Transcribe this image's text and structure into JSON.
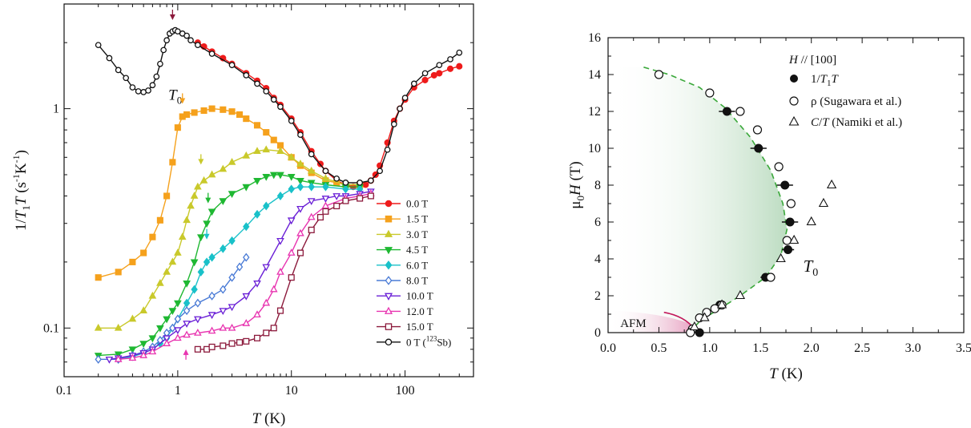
{
  "chart_data": [
    {
      "type": "line",
      "xscale": "log",
      "yscale": "log",
      "xlim": [
        0.1,
        400
      ],
      "ylim": [
        0.06,
        3.0
      ],
      "xlabel": "T (K)",
      "ylabel": "1/T1T (s-1K-1)",
      "x_ticks": [
        {
          "value": 0.1,
          "label": "0.1"
        },
        {
          "value": 1,
          "label": "1"
        },
        {
          "value": 10,
          "label": "10"
        },
        {
          "value": 100,
          "label": "100"
        }
      ],
      "y_ticks": [
        {
          "value": 0.1,
          "label": "0.1"
        },
        {
          "value": 1,
          "label": "1"
        }
      ],
      "annotation": {
        "text": "T0",
        "x": 0.95,
        "y": 1.1
      },
      "legend_position": "bottom-right",
      "series": [
        {
          "name": "0.0 T",
          "color": "#ee1b1b",
          "marker": "circle",
          "fill": true,
          "x": [
            1.5,
            1.7,
            2,
            2.5,
            3,
            4,
            5,
            6,
            7,
            8,
            10,
            12,
            15,
            18,
            20,
            25,
            30,
            35,
            40,
            45,
            50,
            55,
            60,
            70,
            80,
            90,
            100,
            120,
            150,
            180,
            200,
            250,
            300
          ],
          "y": [
            2.0,
            1.92,
            1.82,
            1.7,
            1.6,
            1.45,
            1.34,
            1.24,
            1.12,
            1.04,
            0.9,
            0.78,
            0.64,
            0.56,
            0.52,
            0.47,
            0.45,
            0.44,
            0.44,
            0.45,
            0.47,
            0.5,
            0.55,
            0.7,
            0.88,
            1.0,
            1.1,
            1.25,
            1.35,
            1.42,
            1.45,
            1.52,
            1.56
          ]
        },
        {
          "name": "1.5 T",
          "color": "#f5a11c",
          "marker": "square",
          "fill": true,
          "x": [
            0.2,
            0.3,
            0.4,
            0.5,
            0.6,
            0.7,
            0.8,
            0.9,
            1.0,
            1.1,
            1.2,
            1.4,
            1.7,
            2.0,
            2.5,
            3,
            3.5,
            4,
            5,
            6,
            7,
            8,
            10,
            12,
            15,
            20,
            25,
            30,
            40
          ],
          "y": [
            0.17,
            0.18,
            0.2,
            0.22,
            0.26,
            0.31,
            0.4,
            0.57,
            0.82,
            0.92,
            0.94,
            0.96,
            0.98,
            1.0,
            0.99,
            0.97,
            0.94,
            0.9,
            0.84,
            0.78,
            0.72,
            0.68,
            0.6,
            0.55,
            0.51,
            0.47,
            0.46,
            0.45,
            0.45
          ]
        },
        {
          "name": "3.0 T",
          "color": "#c9c92b",
          "marker": "triangle",
          "fill": true,
          "x": [
            0.2,
            0.3,
            0.4,
            0.5,
            0.6,
            0.7,
            0.8,
            0.9,
            1.0,
            1.1,
            1.2,
            1.3,
            1.4,
            1.5,
            1.7,
            2.0,
            2.5,
            3,
            4,
            5,
            6,
            8,
            10,
            12,
            15,
            20,
            30,
            40
          ],
          "y": [
            0.1,
            0.1,
            0.11,
            0.12,
            0.14,
            0.16,
            0.18,
            0.2,
            0.22,
            0.26,
            0.31,
            0.36,
            0.4,
            0.44,
            0.47,
            0.5,
            0.53,
            0.57,
            0.61,
            0.64,
            0.65,
            0.64,
            0.6,
            0.56,
            0.52,
            0.48,
            0.45,
            0.45
          ]
        },
        {
          "name": "4.5 T",
          "color": "#1fb832",
          "marker": "triangle-down",
          "fill": true,
          "x": [
            0.2,
            0.3,
            0.4,
            0.5,
            0.6,
            0.7,
            0.8,
            0.9,
            1.0,
            1.2,
            1.4,
            1.6,
            1.8,
            2.0,
            2.5,
            3,
            4,
            5,
            6,
            7,
            8,
            10,
            12,
            15,
            20,
            30,
            40
          ],
          "y": [
            0.075,
            0.076,
            0.08,
            0.085,
            0.09,
            0.1,
            0.11,
            0.12,
            0.13,
            0.16,
            0.2,
            0.26,
            0.3,
            0.34,
            0.38,
            0.41,
            0.44,
            0.47,
            0.49,
            0.5,
            0.5,
            0.49,
            0.47,
            0.46,
            0.45,
            0.44,
            0.44
          ]
        },
        {
          "name": "6.0 T",
          "color": "#19c1c9",
          "marker": "diamond",
          "fill": true,
          "x": [
            0.3,
            0.4,
            0.5,
            0.6,
            0.7,
            0.8,
            0.9,
            1.0,
            1.2,
            1.4,
            1.6,
            1.8,
            2.0,
            2.5,
            3,
            4,
            5,
            6,
            8,
            10,
            12,
            15,
            20,
            30,
            40
          ],
          "y": [
            0.072,
            0.074,
            0.077,
            0.08,
            0.085,
            0.09,
            0.1,
            0.11,
            0.13,
            0.15,
            0.18,
            0.2,
            0.21,
            0.23,
            0.25,
            0.29,
            0.33,
            0.36,
            0.4,
            0.43,
            0.44,
            0.44,
            0.44,
            0.43,
            0.43
          ]
        },
        {
          "name": "8.0 T",
          "color": "#4a7bd6",
          "marker": "diamond",
          "fill": false,
          "x": [
            0.2,
            0.3,
            0.4,
            0.5,
            0.6,
            0.7,
            0.8,
            0.9,
            1.0,
            1.2,
            1.5,
            2,
            2.5,
            3,
            3.5,
            4
          ],
          "y": [
            0.072,
            0.072,
            0.075,
            0.078,
            0.082,
            0.088,
            0.095,
            0.1,
            0.11,
            0.12,
            0.13,
            0.14,
            0.15,
            0.17,
            0.19,
            0.21
          ]
        },
        {
          "name": "10.0 T",
          "color": "#6a1fd6",
          "marker": "triangle-down",
          "fill": false,
          "x": [
            0.25,
            0.3,
            0.4,
            0.5,
            0.6,
            0.8,
            1.0,
            1.2,
            1.5,
            2,
            2.5,
            3,
            4,
            5,
            6,
            8,
            10,
            12,
            15,
            20,
            25,
            30,
            40,
            50
          ],
          "y": [
            0.072,
            0.073,
            0.075,
            0.077,
            0.08,
            0.09,
            0.098,
            0.105,
            0.11,
            0.115,
            0.12,
            0.125,
            0.14,
            0.16,
            0.19,
            0.25,
            0.31,
            0.35,
            0.38,
            0.39,
            0.4,
            0.4,
            0.41,
            0.42
          ]
        },
        {
          "name": "12.0 T",
          "color": "#e834b0",
          "marker": "triangle",
          "fill": false,
          "x": [
            0.3,
            0.4,
            0.5,
            0.6,
            0.8,
            1.0,
            1.2,
            1.5,
            2,
            2.5,
            3,
            4,
            5,
            6,
            7,
            8,
            10,
            12,
            15,
            20,
            30,
            40,
            50
          ],
          "y": [
            0.072,
            0.073,
            0.075,
            0.078,
            0.085,
            0.09,
            0.093,
            0.095,
            0.097,
            0.1,
            0.1,
            0.105,
            0.115,
            0.13,
            0.15,
            0.18,
            0.22,
            0.27,
            0.32,
            0.36,
            0.39,
            0.4,
            0.41
          ]
        },
        {
          "name": "15.0 T",
          "color": "#8c1a3c",
          "marker": "square",
          "fill": false,
          "x": [
            1.5,
            1.8,
            2.0,
            2.5,
            3,
            3.5,
            4,
            5,
            6,
            7,
            8,
            10,
            12,
            15,
            18,
            20,
            25,
            30,
            40,
            50
          ],
          "y": [
            0.08,
            0.08,
            0.082,
            0.083,
            0.085,
            0.086,
            0.087,
            0.09,
            0.095,
            0.1,
            0.12,
            0.17,
            0.22,
            0.28,
            0.32,
            0.34,
            0.36,
            0.38,
            0.39,
            0.4
          ]
        },
        {
          "name": "0 T (123Sb)",
          "color": "#111111",
          "marker": "circle",
          "fill": false,
          "x": [
            0.2,
            0.25,
            0.3,
            0.35,
            0.4,
            0.45,
            0.5,
            0.55,
            0.6,
            0.65,
            0.7,
            0.75,
            0.8,
            0.85,
            0.9,
            0.95,
            1.0,
            1.1,
            1.2,
            1.3,
            1.5,
            2,
            3,
            4,
            5,
            6,
            7,
            8,
            10,
            12,
            15,
            20,
            25,
            30,
            40,
            50,
            60,
            70,
            80,
            90,
            100,
            120,
            150,
            200,
            250,
            300
          ],
          "y": [
            1.95,
            1.7,
            1.5,
            1.38,
            1.25,
            1.2,
            1.19,
            1.21,
            1.28,
            1.4,
            1.6,
            1.85,
            2.05,
            2.2,
            2.25,
            2.28,
            2.25,
            2.2,
            2.15,
            2.05,
            1.95,
            1.78,
            1.58,
            1.42,
            1.3,
            1.2,
            1.1,
            1.02,
            0.88,
            0.76,
            0.62,
            0.52,
            0.48,
            0.46,
            0.46,
            0.47,
            0.52,
            0.65,
            0.85,
            1.0,
            1.12,
            1.3,
            1.45,
            1.58,
            1.68,
            1.8
          ]
        }
      ]
    },
    {
      "type": "scatter",
      "xlim": [
        0.0,
        3.5
      ],
      "ylim": [
        0,
        16
      ],
      "xlabel": "T (K)",
      "ylabel": "μ0H (T)",
      "x_ticks": [
        "0.0",
        "0.5",
        "1.0",
        "1.5",
        "2.0",
        "2.5",
        "3.0",
        "3.5"
      ],
      "x_tick_values": [
        0,
        0.5,
        1.0,
        1.5,
        2.0,
        2.5,
        3.0,
        3.5
      ],
      "y_ticks": [
        0,
        2,
        4,
        6,
        8,
        10,
        12,
        14,
        16
      ],
      "legend_title": "H // [100]",
      "legend_position": "top-right",
      "labels": [
        {
          "text": "T0",
          "x": 1.92,
          "y": 3.3
        },
        {
          "text": "AFM",
          "x": 0.12,
          "y": 0.3
        }
      ],
      "series": [
        {
          "name": "1/T1T",
          "marker": "filled-circle",
          "x": [
            0.9,
            1.1,
            1.55,
            1.77,
            1.79,
            1.74,
            1.48,
            1.17
          ],
          "y": [
            0,
            1.5,
            3,
            4.5,
            6,
            8,
            10,
            12
          ],
          "xerr": [
            0.0,
            0.05,
            0.05,
            0.06,
            0.08,
            0.08,
            0.08,
            0.08
          ]
        },
        {
          "name": "ρ (Sugawara et al.)",
          "marker": "open-circle",
          "x": [
            0.5,
            1.0,
            1.3,
            1.47,
            1.68,
            1.8,
            1.76,
            1.6,
            1.12,
            1.05,
            0.97,
            0.9,
            0.83,
            0.81
          ],
          "y": [
            14,
            13,
            12,
            11,
            9,
            7,
            5,
            3,
            1.5,
            1.3,
            1.1,
            0.8,
            0.2,
            0
          ],
          "xerr": []
        },
        {
          "name": "C/T (Namiki et al.)",
          "marker": "open-triangle",
          "x": [
            2.2,
            2.12,
            2.0,
            1.83,
            1.7,
            1.3,
            1.12,
            0.95,
            0.85
          ],
          "y": [
            8,
            7,
            6,
            5,
            4,
            2,
            1.5,
            0.8,
            0.3
          ],
          "xerr": []
        }
      ]
    }
  ]
}
